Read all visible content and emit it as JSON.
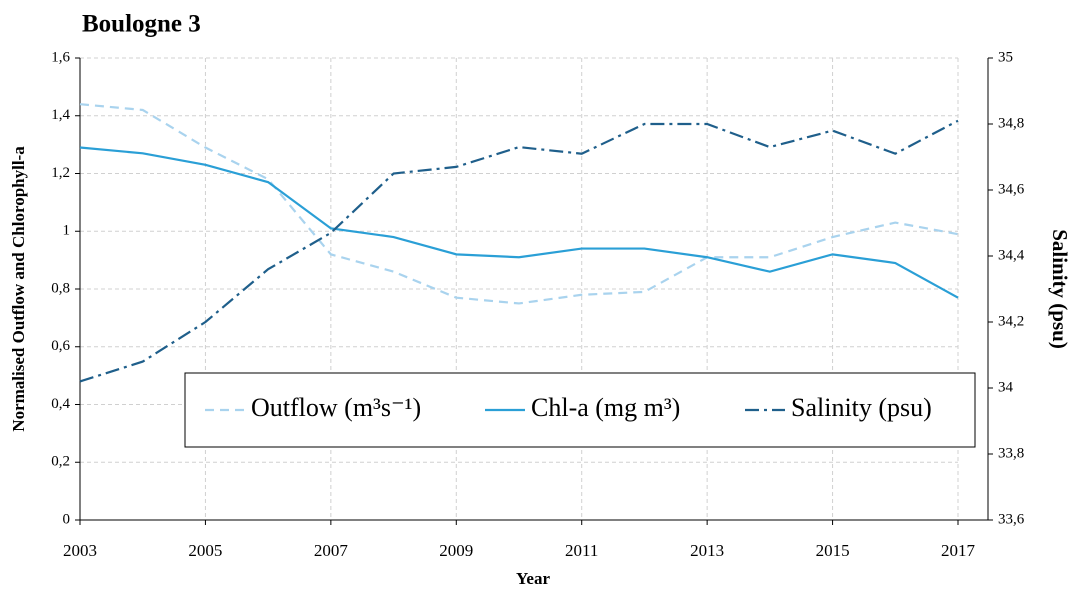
{
  "chart_data": {
    "type": "line",
    "title": "Boulogne 3",
    "x_label": "Year",
    "y_label": "Normalised Outflow and Chlorophyll-a",
    "y2_label": "Salinity (psu)",
    "x": [
      2003,
      2004,
      2005,
      2006,
      2007,
      2008,
      2009,
      2010,
      2011,
      2012,
      2013,
      2014,
      2015,
      2016,
      2017
    ],
    "xlim": [
      2003,
      2017
    ],
    "xticks": [
      2003,
      2005,
      2007,
      2009,
      2011,
      2013,
      2015,
      2017
    ],
    "ylim": [
      0,
      1.6
    ],
    "yticks": [
      0,
      {
        "value": 0.2,
        "label": "0,2"
      },
      {
        "value": 0.4,
        "label": "0,4"
      },
      {
        "value": 0.6,
        "label": "0,6"
      },
      {
        "value": 0.8,
        "label": "0,8"
      },
      1,
      {
        "value": 1.2,
        "label": "1,2"
      },
      {
        "value": 1.4,
        "label": "1,4"
      },
      {
        "value": 1.6,
        "label": "1,6"
      }
    ],
    "y2lim": [
      33.6,
      35
    ],
    "y2ticks": [
      {
        "value": 33.6,
        "label": "33,6"
      },
      {
        "value": 33.8,
        "label": "33,8"
      },
      34,
      {
        "value": 34.2,
        "label": "34,2"
      },
      {
        "value": 34.4,
        "label": "34,4"
      },
      {
        "value": 34.6,
        "label": "34,6"
      },
      {
        "value": 34.8,
        "label": "34,8"
      },
      35
    ],
    "grid": true,
    "legend": "lower right",
    "series": [
      {
        "name": "Outflow (m³s⁻¹)",
        "color": "#a9d3ee",
        "line_style": "dashed",
        "values": [
          1.44,
          1.42,
          1.29,
          1.18,
          0.92,
          0.86,
          0.77,
          0.75,
          0.78,
          0.79,
          0.91,
          0.91,
          0.98,
          1.03,
          0.99
        ]
      },
      {
        "name": "Chl-a (mg m³)",
        "color": "#2a9fd6",
        "line_style": "solid",
        "values": [
          1.29,
          1.27,
          1.23,
          1.17,
          1.01,
          0.98,
          0.92,
          0.91,
          0.94,
          0.94,
          0.91,
          0.86,
          0.92,
          0.89,
          0.77
        ]
      },
      {
        "name": "Salinity (psu)",
        "color": "#1f5f8b",
        "line_style": "dashdot",
        "axis": "y2",
        "values": [
          34.02,
          34.08,
          34.2,
          34.36,
          34.47,
          34.65,
          34.67,
          34.73,
          34.71,
          34.8,
          34.8,
          34.73,
          34.78,
          34.71,
          34.81
        ]
      }
    ]
  }
}
